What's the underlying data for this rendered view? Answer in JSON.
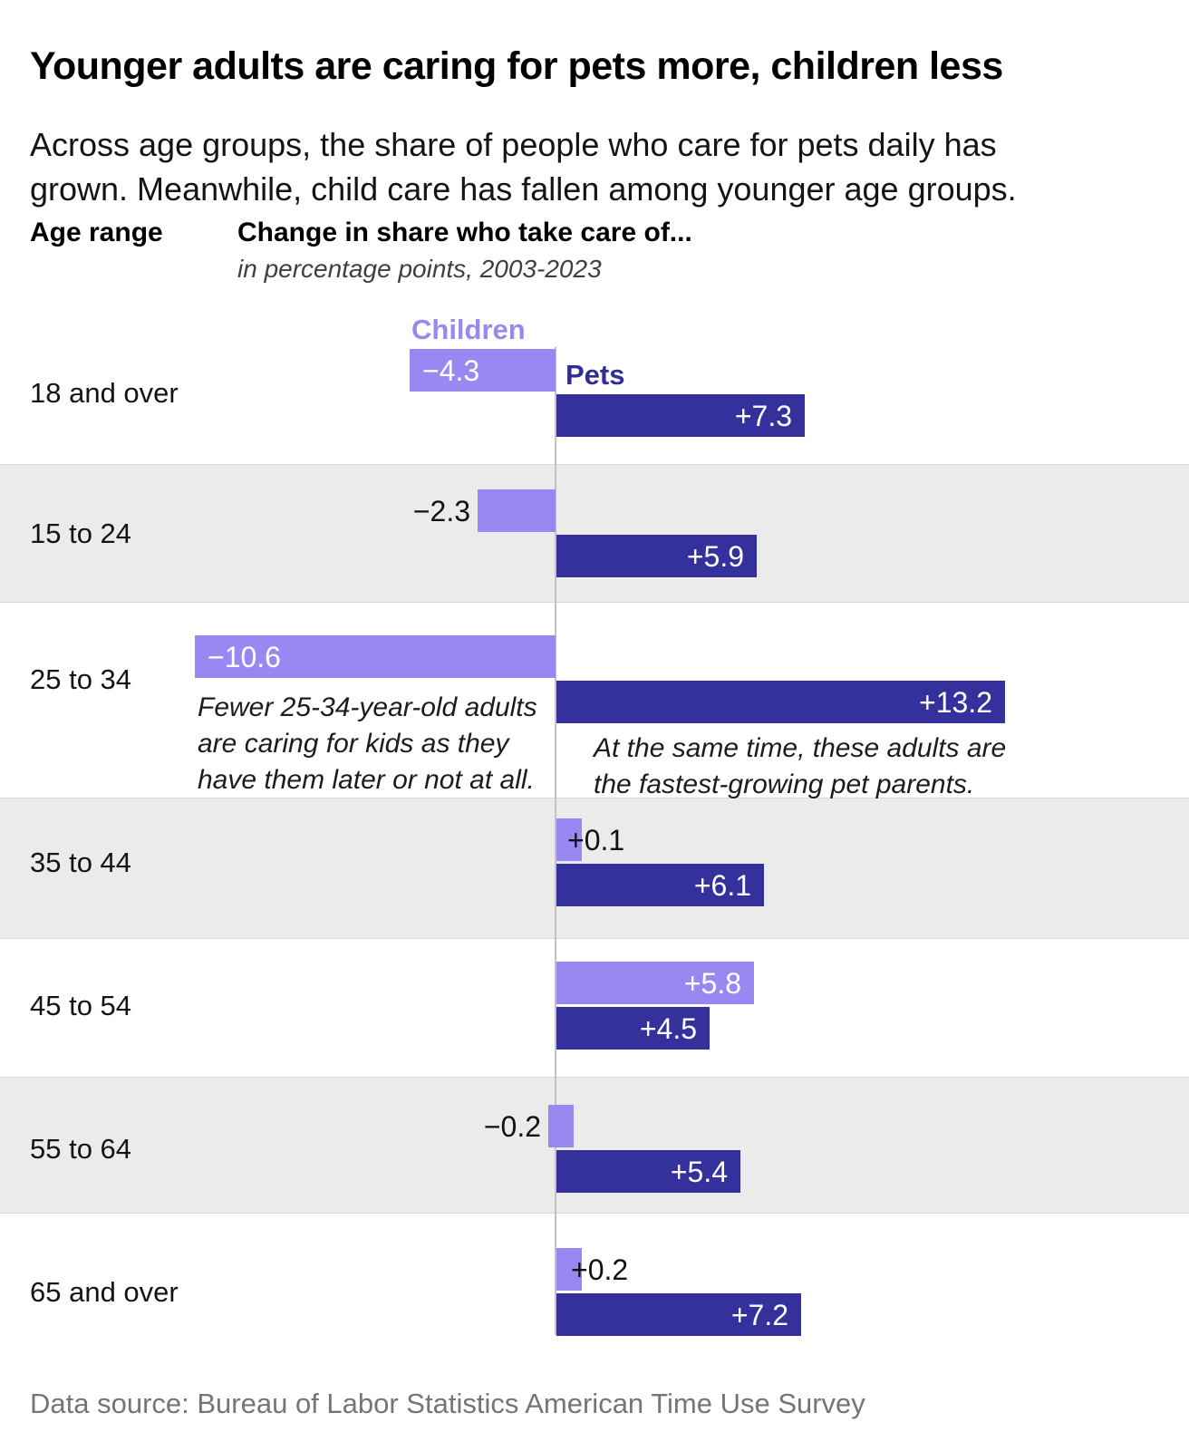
{
  "header": {
    "title": "Younger adults are caring for pets more, children less",
    "subtitle": "Across age groups, the share of people who care for pets daily has\ngrown. Meanwhile, child care has fallen among younger age groups."
  },
  "columns": {
    "age_range": "Age range",
    "measure": "Change in share who take care of...",
    "measure_sub": "in percentage points, 2003-2023"
  },
  "legend": {
    "children": "Children",
    "pets": "Pets"
  },
  "colors": {
    "children": "#9a88f2",
    "pets": "#35319c",
    "pets_label_text": "#312e93",
    "row_shade": "#ebebeb",
    "axis": "#c2c2c2"
  },
  "chart_data": {
    "type": "bar",
    "orientation": "horizontal-diverging",
    "title": "Change in share who take care of...",
    "subtitle": "in percentage points, 2003-2023",
    "categories": [
      "18 and over",
      "15 to 24",
      "25 to 34",
      "35 to 44",
      "45 to 54",
      "55 to 64",
      "65 and over"
    ],
    "series": [
      {
        "name": "Children",
        "values": [
          -4.3,
          -2.3,
          -10.6,
          0.1,
          5.8,
          -0.2,
          0.2
        ]
      },
      {
        "name": "Pets",
        "values": [
          7.3,
          5.9,
          13.2,
          6.1,
          4.5,
          5.4,
          7.2
        ]
      }
    ],
    "value_labels": {
      "children": [
        "−4.3",
        "−2.3",
        "−10.6",
        "+0.1",
        "+5.8",
        "−0.2",
        "+0.2"
      ],
      "pets": [
        "+7.3",
        "+5.9",
        "+13.2",
        "+6.1",
        "+4.5",
        "+5.4",
        "+7.2"
      ]
    },
    "annotations": [
      {
        "target": "children",
        "row": "25 to 34",
        "text": "Fewer 25-34-year-old adults\nare caring for kids as they\nhave them later or not at all."
      },
      {
        "target": "pets",
        "row": "25 to 34",
        "text": "At the same time, these adults are\nthe fastest-growing pet parents."
      }
    ],
    "xlim": [
      -10.6,
      13.2
    ],
    "grid": false,
    "legend_position": "first-row-inline"
  },
  "footer": {
    "source": "Data source: Bureau of Labor Statistics American Time Use Survey"
  }
}
